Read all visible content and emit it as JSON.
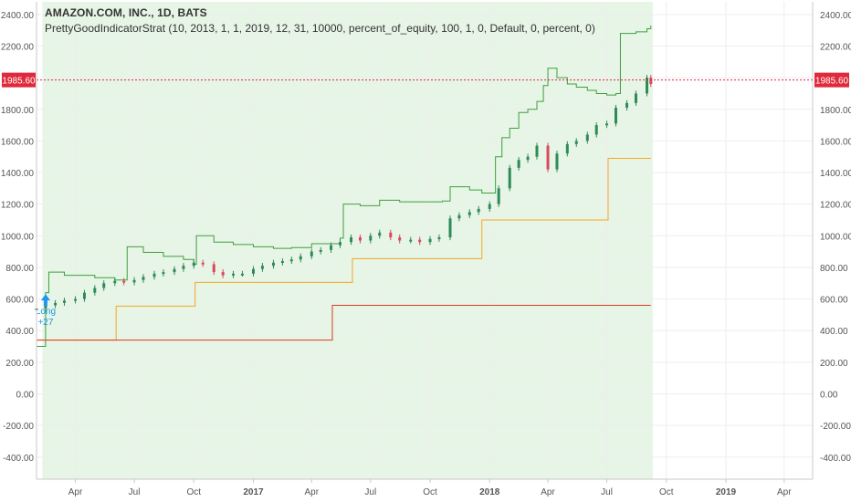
{
  "header": {
    "symbol_title": "AMAZON.COM, INC., 1D, BATS",
    "strategy": "PrettyGoodIndicatorStrat (10, 2013, 1, 1, 2019, 12, 31, 10000, percent_of_equity, 100, 1, 0, Default, 0, percent, 0)"
  },
  "colors": {
    "background_shade": "#e6f5e6",
    "equity_line": "#3f9f3f",
    "channel_line": "#f5a623",
    "stop_line": "#e0391e",
    "price_up": "#2e8b57",
    "price_down": "#d84a5b",
    "price_marker": "#e0293a",
    "signal": "#2196f3",
    "axis_text": "#555555",
    "grid": "#eeeeee"
  },
  "chart_data": {
    "type": "line",
    "title": "AMAZON.COM, INC., 1D, BATS",
    "x_tick_labels": [
      "Apr",
      "Jul",
      "Oct",
      "2017",
      "Apr",
      "Jul",
      "Oct",
      "2018",
      "Apr",
      "Jul",
      "Oct",
      "2019",
      "Apr"
    ],
    "x_tick_dates": [
      "2016-04-01",
      "2016-07-01",
      "2016-10-01",
      "2017-01-01",
      "2017-04-01",
      "2017-07-01",
      "2017-10-01",
      "2018-01-01",
      "2018-04-01",
      "2018-07-01",
      "2018-10-01",
      "2019-01-01",
      "2019-04-01"
    ],
    "xlim": [
      "2016-02-01",
      "2019-05-15"
    ],
    "ylim": [
      -540,
      2480
    ],
    "y_ticks": [
      -400,
      -200,
      0,
      200,
      400,
      600,
      800,
      1000,
      1200,
      1400,
      1600,
      1800,
      2000,
      2200,
      2400
    ],
    "y_tick_labels": [
      "-400.00",
      "-200.00",
      "0.00",
      "200.00",
      "400.00",
      "600.00",
      "800.00",
      "1000.00",
      "1200.00",
      "1400.00",
      "1600.00",
      "1800.00",
      "2000.00",
      "2200.00",
      "2400.00"
    ],
    "last_price": 1985.6,
    "last_price_label": "1985.60",
    "grid": true,
    "shaded_region": [
      "2016-02-10",
      "2018-09-10"
    ],
    "signal": {
      "label": "Long",
      "sublabel": "+27",
      "date": "2016-02-15",
      "value": 470
    },
    "series": [
      {
        "type": "candles",
        "points": [
          [
            "2016-02-01",
            540
          ],
          [
            "2016-02-15",
            560
          ],
          [
            "2016-03-01",
            575
          ],
          [
            "2016-03-15",
            590
          ],
          [
            "2016-04-01",
            600
          ],
          [
            "2016-04-15",
            640
          ],
          [
            "2016-05-01",
            670
          ],
          [
            "2016-05-15",
            700
          ],
          [
            "2016-06-01",
            715
          ],
          [
            "2016-06-15",
            705
          ],
          [
            "2016-07-01",
            720
          ],
          [
            "2016-07-15",
            740
          ],
          [
            "2016-08-01",
            760
          ],
          [
            "2016-08-15",
            770
          ],
          [
            "2016-09-01",
            790
          ],
          [
            "2016-09-15",
            810
          ],
          [
            "2016-10-01",
            830
          ],
          [
            "2016-10-15",
            820
          ],
          [
            "2016-11-01",
            770
          ],
          [
            "2016-11-15",
            750
          ],
          [
            "2016-12-01",
            760
          ],
          [
            "2016-12-15",
            760
          ],
          [
            "2017-01-01",
            790
          ],
          [
            "2017-01-15",
            810
          ],
          [
            "2017-02-01",
            830
          ],
          [
            "2017-02-15",
            840
          ],
          [
            "2017-03-01",
            850
          ],
          [
            "2017-03-15",
            870
          ],
          [
            "2017-04-01",
            900
          ],
          [
            "2017-04-15",
            910
          ],
          [
            "2017-05-01",
            940
          ],
          [
            "2017-05-15",
            960
          ],
          [
            "2017-06-01",
            990
          ],
          [
            "2017-06-15",
            970
          ],
          [
            "2017-07-01",
            1000
          ],
          [
            "2017-07-15",
            1020
          ],
          [
            "2017-08-01",
            990
          ],
          [
            "2017-08-15",
            970
          ],
          [
            "2017-09-01",
            975
          ],
          [
            "2017-09-15",
            960
          ],
          [
            "2017-10-01",
            980
          ],
          [
            "2017-10-15",
            990
          ],
          [
            "2017-11-01",
            1110
          ],
          [
            "2017-11-15",
            1130
          ],
          [
            "2017-12-01",
            1150
          ],
          [
            "2017-12-15",
            1170
          ],
          [
            "2018-01-01",
            1200
          ],
          [
            "2018-01-15",
            1300
          ],
          [
            "2018-02-01",
            1430
          ],
          [
            "2018-02-15",
            1480
          ],
          [
            "2018-03-01",
            1500
          ],
          [
            "2018-03-15",
            1570
          ],
          [
            "2018-04-01",
            1420
          ],
          [
            "2018-04-15",
            1520
          ],
          [
            "2018-05-01",
            1580
          ],
          [
            "2018-05-15",
            1600
          ],
          [
            "2018-06-01",
            1640
          ],
          [
            "2018-06-15",
            1700
          ],
          [
            "2018-07-01",
            1710
          ],
          [
            "2018-07-15",
            1810
          ],
          [
            "2018-08-01",
            1840
          ],
          [
            "2018-08-15",
            1900
          ],
          [
            "2018-09-01",
            2000
          ],
          [
            "2018-09-07",
            1960
          ]
        ]
      },
      {
        "type": "step",
        "color": "#3f9f3f",
        "points": [
          [
            "2016-02-01",
            300
          ],
          [
            "2016-02-15",
            640
          ],
          [
            "2016-02-20",
            770
          ],
          [
            "2016-03-15",
            750
          ],
          [
            "2016-05-01",
            735
          ],
          [
            "2016-06-01",
            720
          ],
          [
            "2016-06-20",
            930
          ],
          [
            "2016-07-15",
            895
          ],
          [
            "2016-08-15",
            870
          ],
          [
            "2016-09-15",
            850
          ],
          [
            "2016-10-01",
            820
          ],
          [
            "2016-10-05",
            1000
          ],
          [
            "2016-11-01",
            960
          ],
          [
            "2016-12-01",
            945
          ],
          [
            "2017-01-01",
            930
          ],
          [
            "2017-02-01",
            920
          ],
          [
            "2017-03-01",
            925
          ],
          [
            "2017-04-01",
            950
          ],
          [
            "2017-05-15",
            985
          ],
          [
            "2017-05-20",
            1200
          ],
          [
            "2017-06-15",
            1190
          ],
          [
            "2017-07-15",
            1225
          ],
          [
            "2017-08-15",
            1215
          ],
          [
            "2017-10-01",
            1215
          ],
          [
            "2017-10-20",
            1220
          ],
          [
            "2017-11-01",
            1310
          ],
          [
            "2017-12-01",
            1290
          ],
          [
            "2017-12-20",
            1270
          ],
          [
            "2018-01-01",
            1270
          ],
          [
            "2018-01-10",
            1500
          ],
          [
            "2018-01-20",
            1620
          ],
          [
            "2018-02-01",
            1680
          ],
          [
            "2018-02-15",
            1780
          ],
          [
            "2018-03-01",
            1800
          ],
          [
            "2018-03-15",
            1850
          ],
          [
            "2018-03-25",
            1950
          ],
          [
            "2018-04-01",
            2060
          ],
          [
            "2018-04-15",
            2000
          ],
          [
            "2018-05-01",
            1960
          ],
          [
            "2018-05-15",
            1940
          ],
          [
            "2018-06-01",
            1920
          ],
          [
            "2018-06-15",
            1900
          ],
          [
            "2018-07-01",
            1890
          ],
          [
            "2018-07-15",
            1900
          ],
          [
            "2018-07-22",
            2280
          ],
          [
            "2018-08-15",
            2290
          ],
          [
            "2018-09-01",
            2310
          ],
          [
            "2018-09-07",
            2330
          ]
        ]
      },
      {
        "type": "step",
        "color": "#f5a623",
        "points": [
          [
            "2016-02-01",
            340
          ],
          [
            "2016-06-01",
            340
          ],
          [
            "2016-06-03",
            555
          ],
          [
            "2016-10-01",
            555
          ],
          [
            "2016-10-03",
            705
          ],
          [
            "2017-06-01",
            705
          ],
          [
            "2017-06-03",
            855
          ],
          [
            "2017-12-18",
            855
          ],
          [
            "2017-12-20",
            1100
          ],
          [
            "2018-07-01",
            1100
          ],
          [
            "2018-07-03",
            1490
          ],
          [
            "2018-09-07",
            1490
          ]
        ]
      },
      {
        "type": "step",
        "color": "#e0391e",
        "points": [
          [
            "2016-02-01",
            340
          ],
          [
            "2017-05-01",
            340
          ],
          [
            "2017-05-03",
            560
          ],
          [
            "2018-09-07",
            560
          ]
        ]
      }
    ]
  }
}
